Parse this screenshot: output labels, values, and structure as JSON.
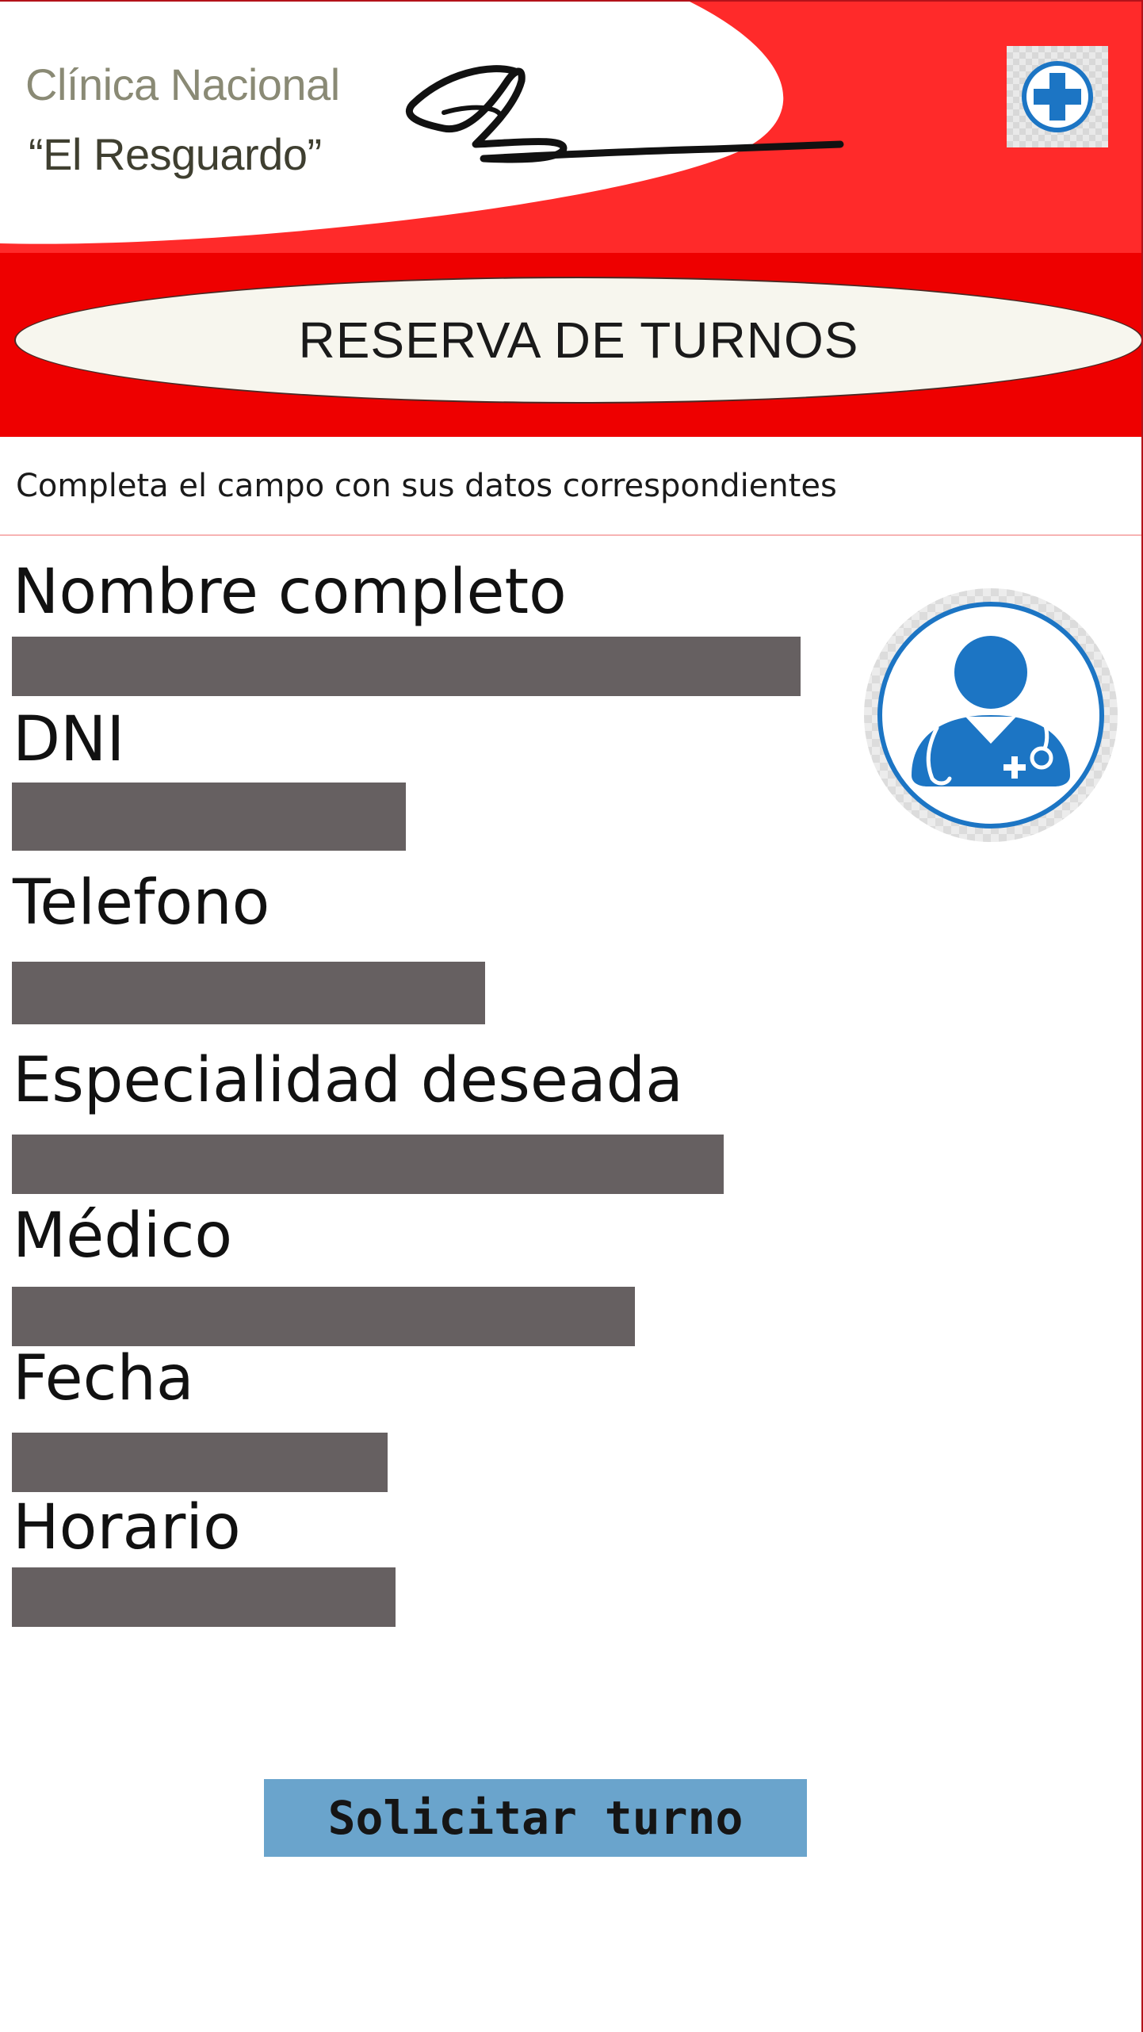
{
  "header": {
    "brand_line_1": "Clínica Nacional",
    "brand_line_2": "“El Resguardo”",
    "signature_icon": "handwritten-signature",
    "logo_icon": "medical-cross-icon"
  },
  "banner": {
    "title": "RESERVA DE TURNOS"
  },
  "instructions": "Completa el campo con sus datos correspondientes",
  "form": {
    "fields": [
      {
        "label": "Nombre completo",
        "value": ""
      },
      {
        "label": "DNI",
        "value": ""
      },
      {
        "label": "Telefono",
        "value": ""
      },
      {
        "label": "Especialidad deseada",
        "value": ""
      },
      {
        "label": "Médico",
        "value": ""
      },
      {
        "label": "Fecha",
        "value": ""
      },
      {
        "label": "Horario",
        "value": ""
      }
    ],
    "avatar_icon": "doctor-icon"
  },
  "submit": {
    "label": "Solicitar turno"
  },
  "colors": {
    "brand_red": "#ee0000",
    "field_fill": "#666061",
    "button_blue": "#6aa4cc",
    "icon_blue": "#1c75c4"
  }
}
